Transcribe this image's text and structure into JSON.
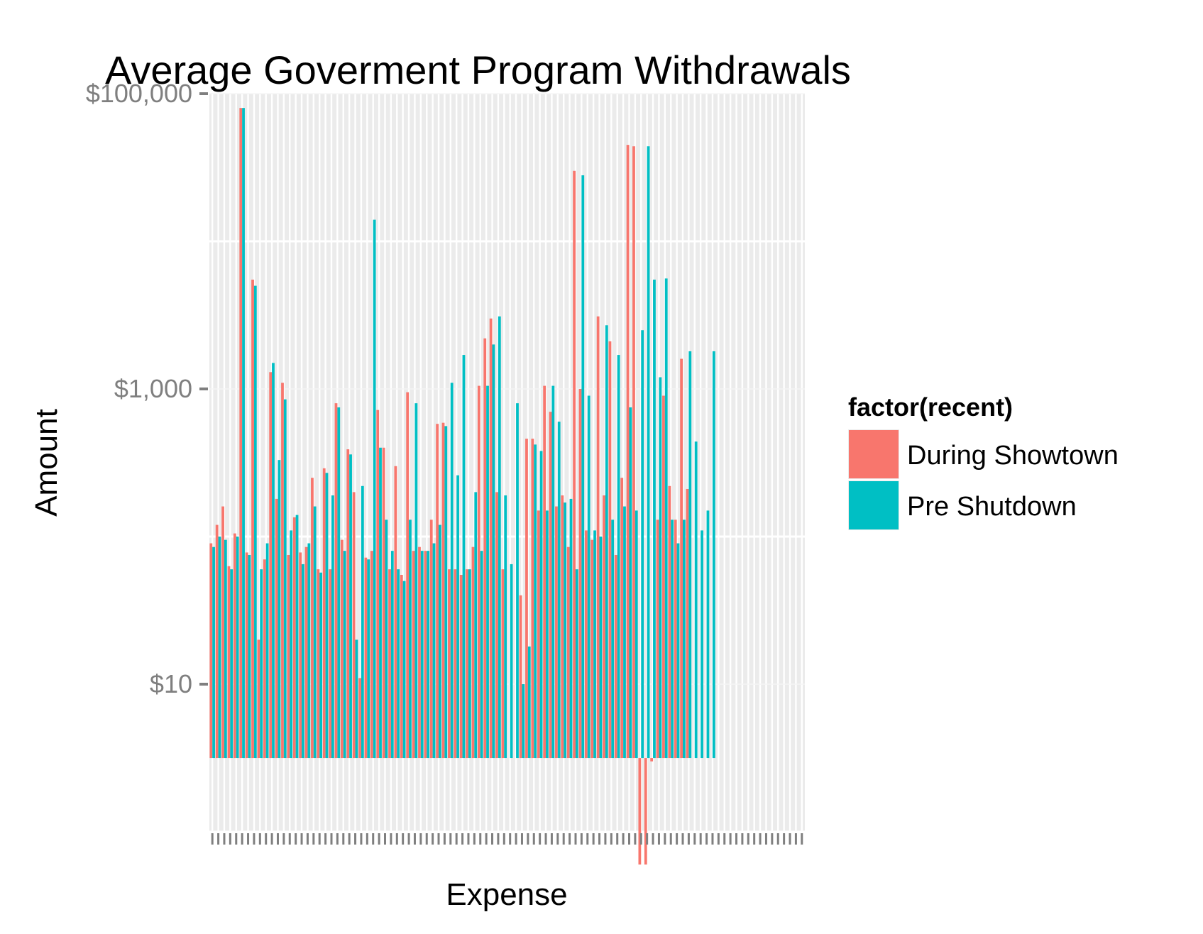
{
  "chart_data": {
    "type": "bar",
    "title": "Average Goverment Program Withdrawals",
    "xlabel": "Expense",
    "ylabel": "Amount",
    "y_scale": "log10",
    "ylim": [
      1,
      100000
    ],
    "y_ticks": [
      {
        "value": 10,
        "label": "$10"
      },
      {
        "value": 1000,
        "label": "$1,000"
      },
      {
        "value": 100000,
        "label": "$100,000"
      }
    ],
    "category_count": 100,
    "x_tick_labels_legible": false,
    "grid": true,
    "panel_background": "#ebebeb",
    "legend": {
      "title": "factor(recent)",
      "placement": "right",
      "entries": [
        {
          "name": "During Showtown",
          "color": "#F8766D"
        },
        {
          "name": "Pre Shutdown",
          "color": "#00BFC4"
        }
      ]
    },
    "series": [
      {
        "name": "During Showtown",
        "color": "#F8766D",
        "values": [
          90,
          120,
          160,
          63,
          105,
          80000,
          78,
          5500,
          20,
          70,
          1300,
          180,
          1100,
          75,
          135,
          78,
          85,
          250,
          60,
          290,
          60,
          800,
          95,
          390,
          200,
          11,
          72,
          80,
          720,
          400,
          60,
          300,
          55,
          950,
          80,
          85,
          80,
          130,
          580,
          590,
          60,
          60,
          55,
          60,
          85,
          1050,
          2200,
          3000,
          200,
          60,
          0,
          0,
          40,
          460,
          460,
          150,
          1050,
          700,
          160,
          190,
          85,
          30000,
          1000,
          110,
          95,
          3100,
          190,
          2100,
          75,
          250,
          45000,
          44000,
          0.6,
          0.6,
          3,
          130,
          900,
          220,
          130,
          1600,
          210
        ]
      },
      {
        "name": "Pre Shutdown",
        "color": "#00BFC4",
        "values": [
          85,
          100,
          95,
          60,
          100,
          80000,
          75,
          5000,
          60,
          90,
          1500,
          330,
          850,
          110,
          140,
          65,
          90,
          160,
          57,
          270,
          190,
          750,
          80,
          360,
          20,
          220,
          70,
          14000,
          400,
          130,
          80,
          60,
          50,
          130,
          800,
          80,
          80,
          90,
          120,
          560,
          1100,
          260,
          1700,
          60,
          200,
          80,
          1050,
          2000,
          3100,
          190,
          65,
          800,
          10,
          18,
          420,
          380,
          150,
          1050,
          600,
          170,
          180,
          60,
          28000,
          900,
          110,
          100,
          2700,
          130,
          1700,
          160,
          750,
          150,
          2500,
          44000,
          5500,
          1200,
          5600,
          130,
          90,
          130,
          1800,
          440,
          110,
          150,
          1800
        ]
      }
    ]
  }
}
